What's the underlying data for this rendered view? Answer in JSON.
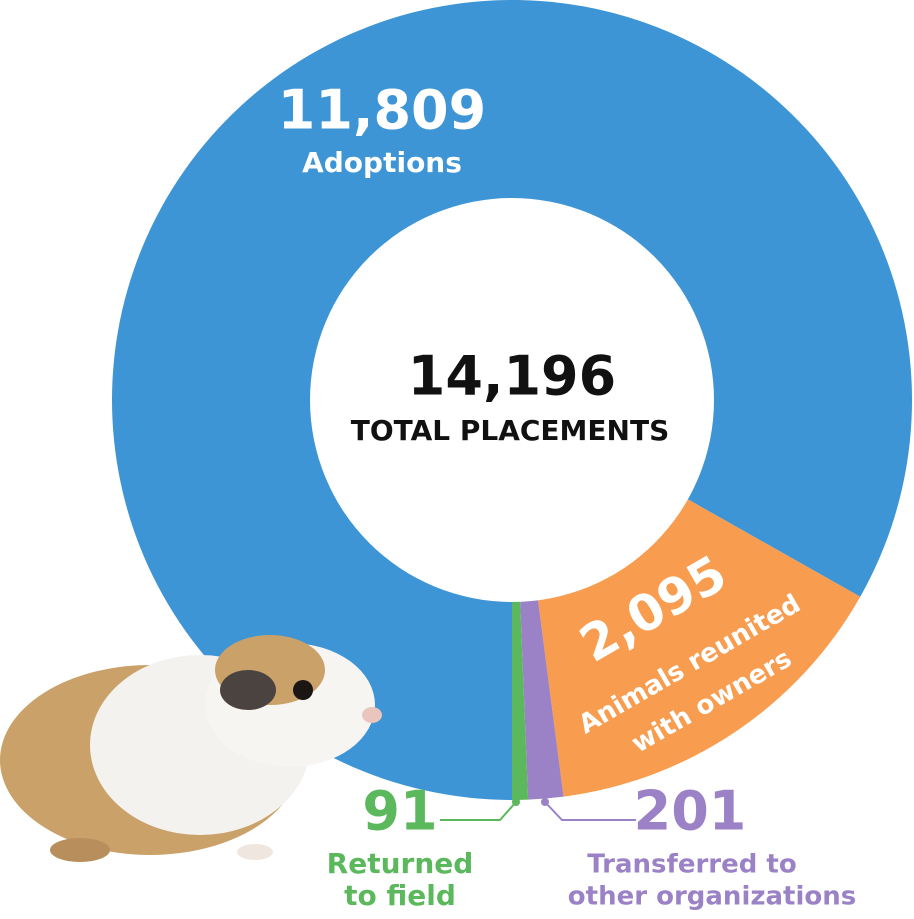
{
  "chart_data": {
    "type": "donut",
    "total": {
      "value": 14196,
      "label": "14,196"
    },
    "total_caption": "TOTAL PLACEMENTS",
    "categories": [
      [
        "Adoptions"
      ],
      [
        "Animals reunited",
        "with owners"
      ],
      [
        "Transferred to",
        "other organizations"
      ],
      [
        "Returned",
        "to field"
      ]
    ],
    "values": [
      11809,
      2095,
      201,
      91
    ],
    "value_labels": [
      "11,809",
      "2,095",
      "201",
      "91"
    ],
    "colors": [
      "#3d95d6",
      "#f89c4f",
      "#9b82c6",
      "#5cb85c"
    ]
  }
}
